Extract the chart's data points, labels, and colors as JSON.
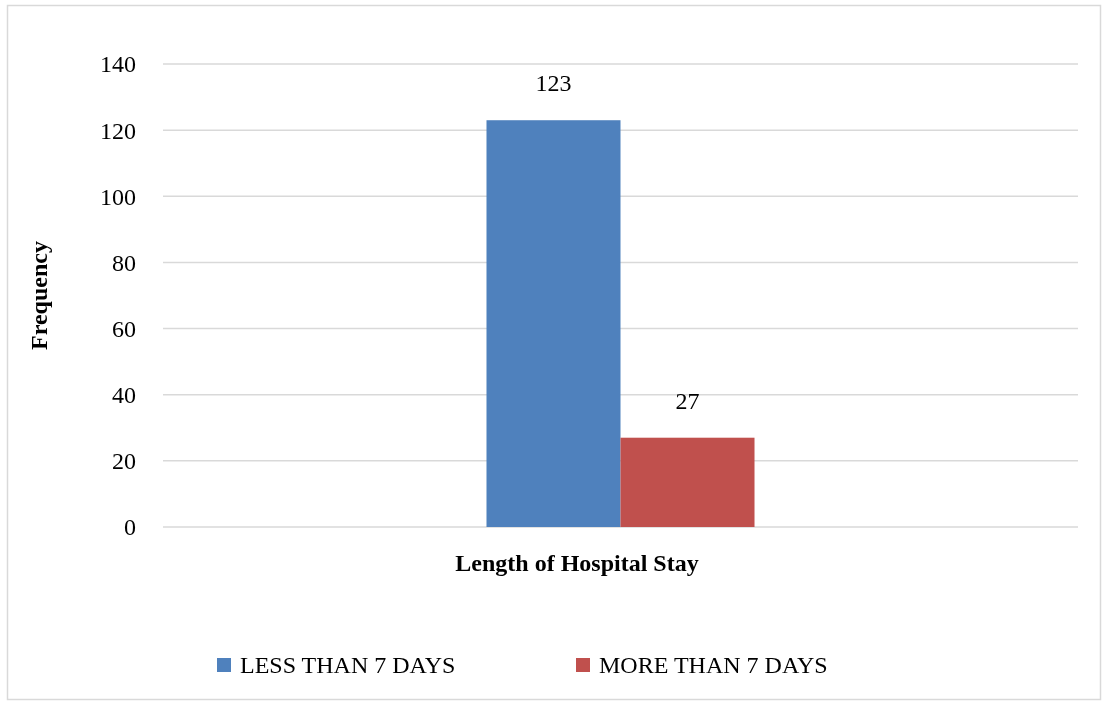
{
  "chart_data": {
    "type": "bar",
    "xlabel": "Length of Hospital Stay",
    "ylabel": "Frequency",
    "categories": [
      null
    ],
    "series": [
      {
        "name": "LESS THAN 7 DAYS",
        "color": "#4f81bd",
        "values": [
          123
        ]
      },
      {
        "name": "MORE THAN 7 DAYS",
        "color": "#c0504d",
        "values": [
          27
        ]
      }
    ],
    "ylim": [
      0,
      140
    ],
    "yticks": [
      0,
      20,
      40,
      60,
      80,
      100,
      120,
      140
    ],
    "grid": "y",
    "legend": "bottom",
    "data_labels": true
  }
}
